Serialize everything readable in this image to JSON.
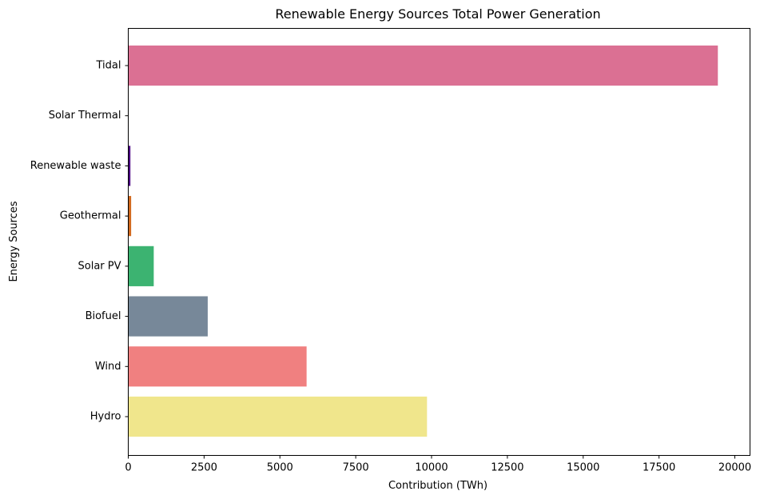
{
  "chart_data": {
    "type": "bar",
    "orientation": "horizontal",
    "title": "Renewable Energy Sources Total Power Generation",
    "xlabel": "Contribution (TWh)",
    "ylabel": "Energy Sources",
    "categories": [
      "Hydro",
      "Wind",
      "Biofuel",
      "Solar PV",
      "Geothermal",
      "Renewable waste",
      "Solar Thermal",
      "Tidal"
    ],
    "values": [
      9850,
      5880,
      2620,
      840,
      95,
      70,
      2,
      19440
    ],
    "colors": [
      "#f0e68c",
      "#f08080",
      "#778899",
      "#3cb371",
      "#d2691e",
      "#4b0082",
      "#20b2aa",
      "#db7093"
    ],
    "xlim": [
      0,
      20500
    ],
    "xticks": [
      0,
      2500,
      5000,
      7500,
      10000,
      12500,
      15000,
      17500,
      20000
    ],
    "xtick_labels": [
      "0",
      "2500",
      "5000",
      "7500",
      "10000",
      "12500",
      "15000",
      "17500",
      "20000"
    ],
    "grid": false,
    "legend": "none"
  }
}
